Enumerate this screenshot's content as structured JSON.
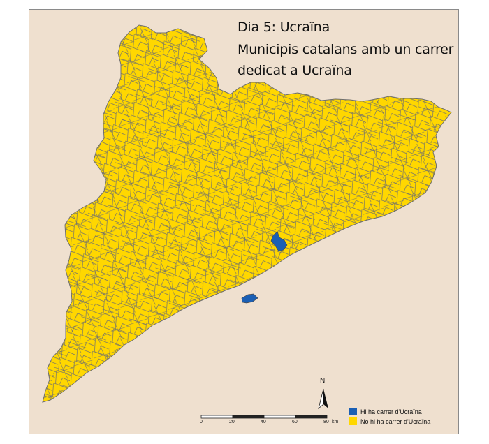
{
  "title": {
    "line1": "Dia 5: Ucraïna",
    "line2": "Municipis catalans amb un carrer",
    "line3": "dedicat a Ucraïna"
  },
  "colors": {
    "background": "#efe0cf",
    "no_street": "#ffd700",
    "has_street": "#1a5fb4",
    "border": "#6e6e6e"
  },
  "legend": {
    "items": [
      {
        "label": "Hi ha carrer d'Ucraïna",
        "color": "#1a5fb4"
      },
      {
        "label": "No hi ha carrer d'Ucraïna",
        "color": "#ffd700"
      }
    ]
  },
  "north_arrow": {
    "label": "N"
  },
  "scale_bar": {
    "ticks": [
      "0",
      "20",
      "40",
      "60",
      "80"
    ],
    "unit": "km"
  }
}
